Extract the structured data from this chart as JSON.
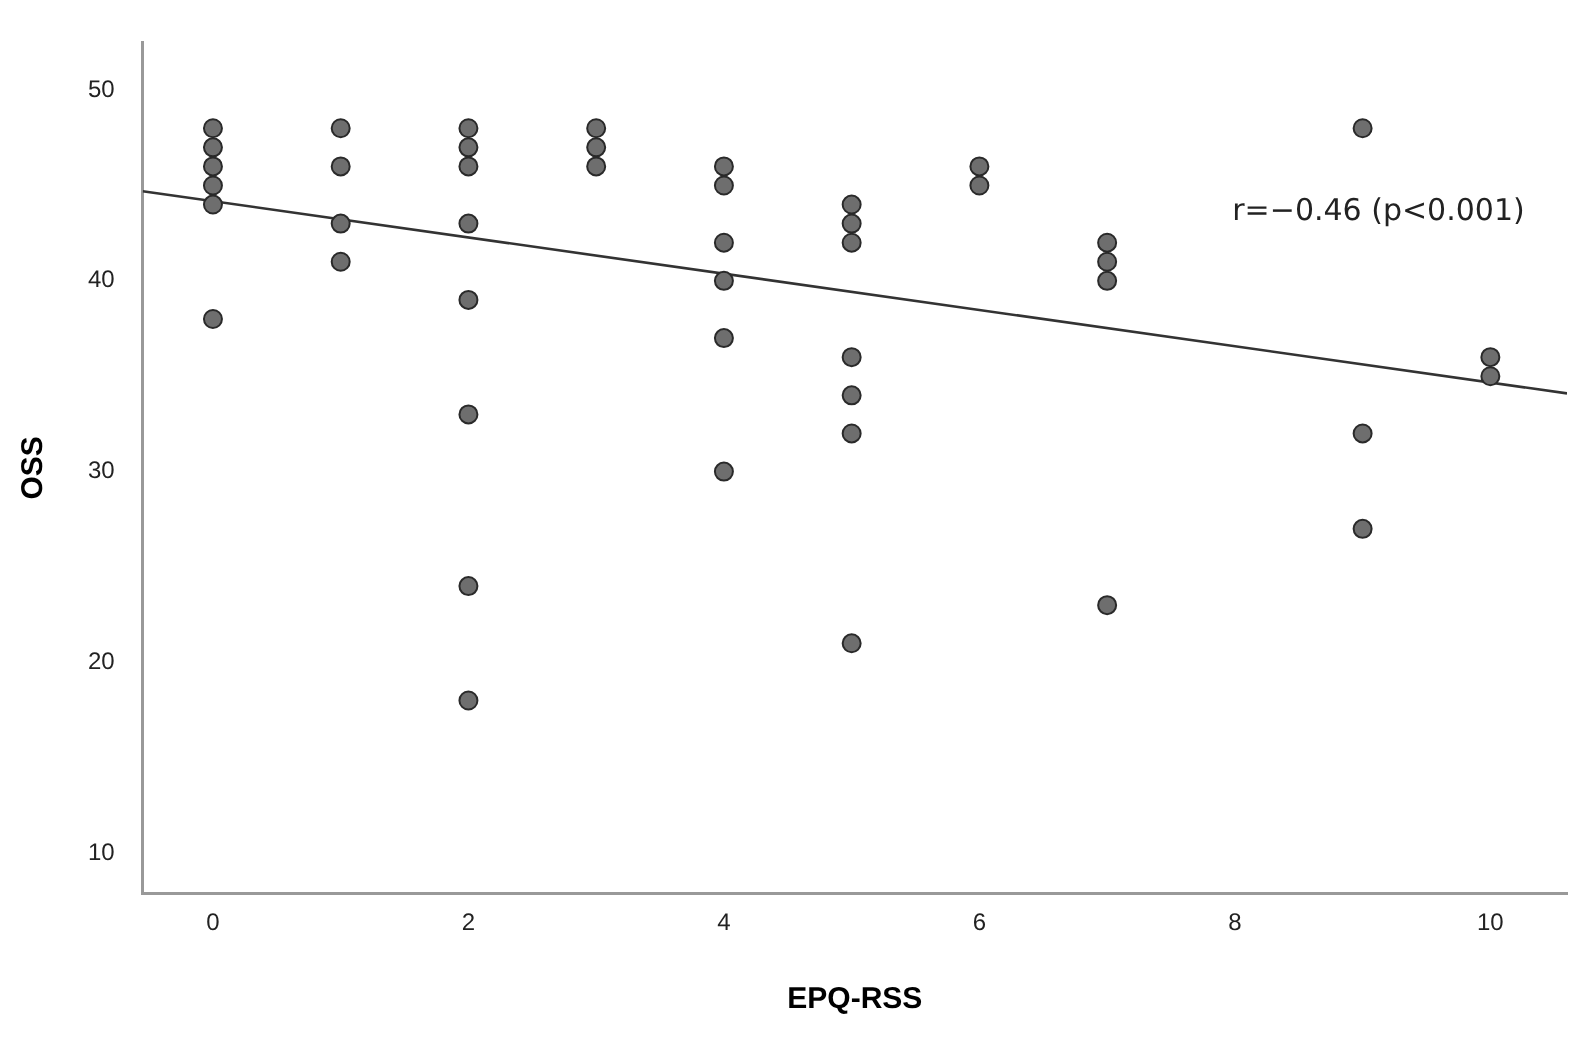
{
  "chart_data": {
    "type": "scatter",
    "xlabel": "EPQ-RSS",
    "ylabel": "OSS",
    "xlim": [
      -0.55,
      10.6
    ],
    "ylim": [
      7.9,
      52.5
    ],
    "xticks": [
      0,
      2,
      4,
      6,
      8,
      10
    ],
    "yticks": [
      10,
      20,
      30,
      40,
      50
    ],
    "grid": false,
    "legend": false,
    "marker": "circle",
    "annotations": [
      "r=−0.46 (p<0.001)"
    ],
    "series": [
      {
        "color": "#6e6e6e",
        "x": [
          0,
          0,
          0,
          0,
          0,
          0,
          1,
          1,
          1,
          1,
          2,
          2,
          2,
          2,
          2,
          2,
          2,
          2,
          3,
          3,
          3,
          4,
          4,
          4,
          4,
          4,
          4,
          5,
          5,
          5,
          5,
          5,
          5,
          5,
          6,
          6,
          7,
          7,
          7,
          7,
          9,
          9,
          9,
          10,
          10
        ],
        "values": [
          48,
          47,
          46,
          45,
          44,
          38,
          48,
          46,
          43,
          41,
          48,
          47,
          46,
          43,
          39,
          33,
          24,
          18,
          48,
          47,
          46,
          46,
          45,
          42,
          40,
          37,
          30,
          44,
          43,
          42,
          36,
          34,
          32,
          21,
          46,
          45,
          42,
          41,
          40,
          23,
          48,
          32,
          27,
          36,
          35
        ]
      },
      {
        "type": "line",
        "color": "#333333",
        "x": [
          -0.55,
          10.6
        ],
        "values": [
          44.7,
          34.1
        ],
        "marker": "none",
        "line_style": "solid"
      }
    ]
  }
}
